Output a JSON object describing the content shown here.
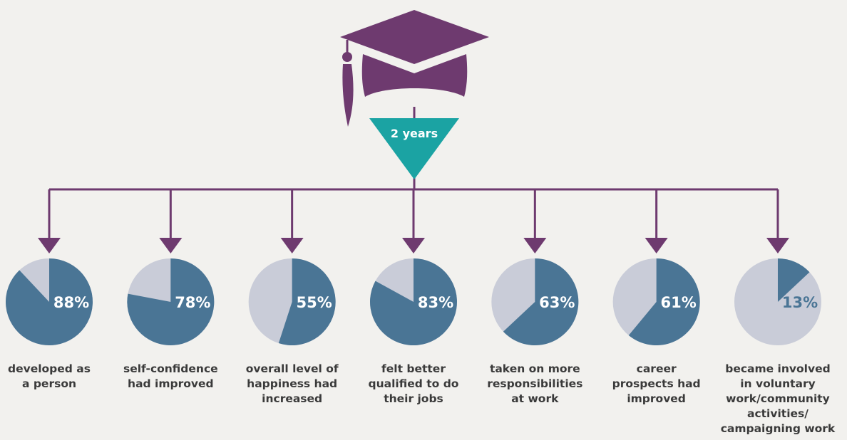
{
  "timeframe_label": "2 years",
  "colors": {
    "background": "#f2f1ee",
    "cap": "#6e3a6f",
    "connector": "#6e3a6f",
    "timeframe_triangle": "#1ba3a3",
    "pie_value": "#4a7595",
    "pie_rest": "#c9ccd8",
    "label_text": "#3a3a3a"
  },
  "icons": [
    "graduation-cap-icon"
  ],
  "chart_data": {
    "type": "pie",
    "unit": "%",
    "items": [
      {
        "value": 88,
        "label": "88%",
        "description": "developed as\na person"
      },
      {
        "value": 78,
        "label": "78%",
        "description": "self-confidence\nhad improved"
      },
      {
        "value": 55,
        "label": "55%",
        "description": "overall level of\nhappiness had\nincreased"
      },
      {
        "value": 83,
        "label": "83%",
        "description": "felt better\nqualified to do\ntheir jobs"
      },
      {
        "value": 63,
        "label": "63%",
        "description": "taken on more\nresponsibilities\nat work"
      },
      {
        "value": 61,
        "label": "61%",
        "description": "career\nprospects had\nimproved"
      },
      {
        "value": 13,
        "label": "13%",
        "description": "became involved\nin voluntary\nwork/community\nactivities/\ncampaigning work"
      }
    ]
  }
}
